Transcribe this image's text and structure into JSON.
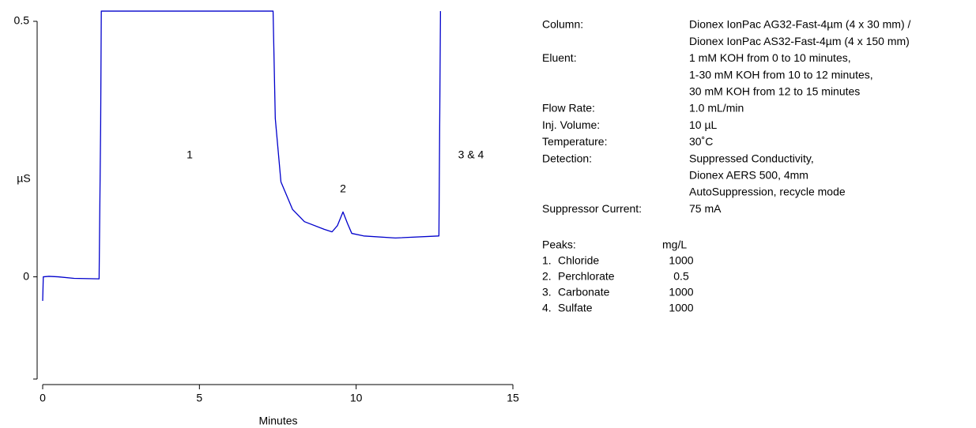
{
  "chart_data": {
    "type": "line",
    "xlabel": "Minutes",
    "ylabel": "µS",
    "xlim": [
      0,
      15
    ],
    "ylim": [
      -0.2,
      0.5
    ],
    "xticks": [
      0,
      5,
      10,
      15
    ],
    "yticks": [
      0,
      0.5
    ],
    "x": [
      0,
      0.02,
      0.2,
      0.5,
      1.0,
      1.8,
      1.85,
      1.87,
      7.35,
      7.42,
      7.6,
      7.97,
      8.35,
      8.98,
      9.23,
      9.4,
      9.58,
      9.72,
      9.86,
      10.24,
      11.25,
      12.64,
      12.69
    ],
    "series": [
      {
        "color": "#0000cc",
        "values": [
          -0.047,
          0.0,
          0.001,
          0.0,
          -0.003,
          -0.004,
          0.3,
          0.52,
          0.52,
          0.31,
          0.186,
          0.132,
          0.108,
          0.093,
          0.088,
          0.1,
          0.127,
          0.105,
          0.085,
          0.08,
          0.076,
          0.08,
          0.52
        ]
      }
    ],
    "peak_labels": [
      "1",
      "2",
      "3 & 4"
    ],
    "conditions": [
      {
        "label": "Column:",
        "lines": [
          "Dionex IonPac AG32-Fast-4µm (4 x 30 mm) /",
          "Dionex IonPac AS32-Fast-4µm (4 x 150 mm)"
        ]
      },
      {
        "label": "Eluent:",
        "lines": [
          "1 mM KOH from 0 to 10 minutes,",
          "1-30 mM KOH from 10 to 12 minutes,",
          "30 mM KOH from 12 to 15 minutes"
        ]
      },
      {
        "label": "Flow Rate:",
        "lines": [
          "1.0 mL/min"
        ]
      },
      {
        "label": "Inj. Volume:",
        "lines": [
          "10 µL"
        ]
      },
      {
        "label": "Temperature:",
        "lines": [
          "30˚C"
        ]
      },
      {
        "label": "Detection:",
        "lines": [
          "Suppressed Conductivity,",
          "Dionex AERS 500, 4mm",
          "AutoSuppression, recycle mode"
        ]
      },
      {
        "label": "Suppressor Current:",
        "lines": [
          "75 mA"
        ]
      }
    ],
    "peaks": {
      "header": [
        "Peaks:",
        "mg/L"
      ],
      "rows": [
        [
          "1.",
          "Chloride",
          1000
        ],
        [
          "2.",
          "Perchlorate",
          0.5
        ],
        [
          "3.",
          "Carbonate",
          1000
        ],
        [
          "4.",
          "Sulfate",
          1000
        ]
      ]
    }
  }
}
